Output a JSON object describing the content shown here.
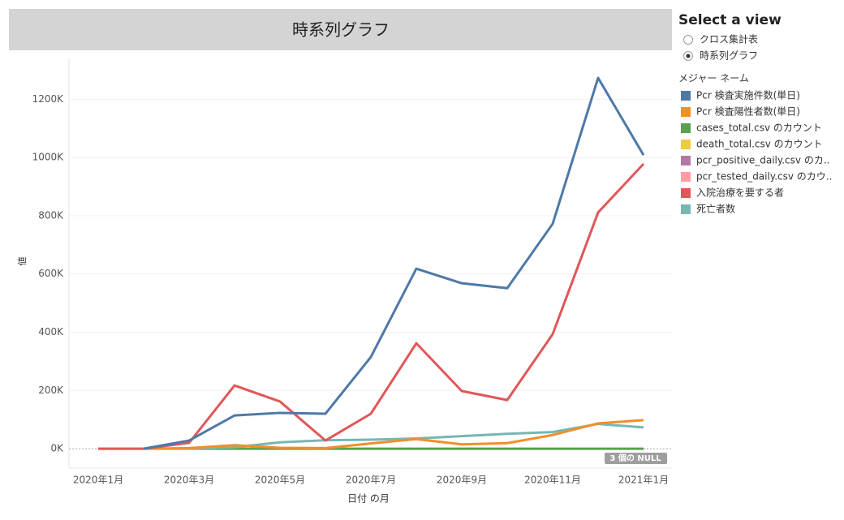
{
  "chart_data": {
    "type": "line",
    "title": "時系列グラフ",
    "x_label": "日付 の月",
    "y_label": "値",
    "categories": [
      "2020年1月",
      null,
      "2020年3月",
      null,
      "2020年5月",
      null,
      "2020年7月",
      null,
      "2020年9月",
      null,
      "2020年11月",
      null,
      "2021年1月"
    ],
    "legend_title": "メジャー ネーム",
    "null_badge": "3 個の NULL",
    "ylim": [
      -61000,
      1340000
    ],
    "yticks": [
      {
        "value": 0,
        "label": "0K"
      },
      {
        "value": 200000,
        "label": "200K"
      },
      {
        "value": 400000,
        "label": "400K"
      },
      {
        "value": 600000,
        "label": "600K"
      },
      {
        "value": 800000,
        "label": "800K"
      },
      {
        "value": 1000000,
        "label": "1000K"
      },
      {
        "value": 1200000,
        "label": "1200K"
      }
    ],
    "series": [
      {
        "name": "Pcr 検査実施件数(単日)",
        "color": "#4e79a7",
        "values": [
          null,
          0,
          28000,
          114000,
          123000,
          120000,
          315000,
          618000,
          568000,
          551000,
          772000,
          1273000,
          1008000
        ]
      },
      {
        "name": "Pcr 検査陽性者数(単日)",
        "color": "#f28e2b",
        "values": [
          0,
          0,
          2000,
          12000,
          3000,
          2000,
          18000,
          33000,
          15000,
          19000,
          47000,
          87000,
          98000
        ]
      },
      {
        "name": "cases_total.csv のカウント",
        "color": "#59a14f",
        "values": [
          null,
          null,
          0,
          0,
          0,
          0,
          0,
          0,
          0,
          0,
          0,
          0,
          0
        ]
      },
      {
        "name": "death_total.csv のカウント",
        "color": "#edc948",
        "values": [
          null,
          null,
          null,
          null,
          null,
          null,
          null,
          null,
          null,
          null,
          null,
          null,
          null
        ]
      },
      {
        "name": "pcr_positive_daily.csv のカ..",
        "color": "#b07aa1",
        "values": [
          null,
          null,
          null,
          null,
          null,
          null,
          null,
          null,
          null,
          null,
          null,
          null,
          null
        ]
      },
      {
        "name": "pcr_tested_daily.csv のカウ..",
        "color": "#ff9da7",
        "values": [
          null,
          null,
          null,
          null,
          null,
          null,
          null,
          null,
          null,
          null,
          null,
          null,
          null
        ]
      },
      {
        "name": "入院治療を要する者",
        "color": "#e15759",
        "values": [
          0,
          0,
          20000,
          217000,
          162000,
          28000,
          120000,
          362000,
          198000,
          167000,
          393000,
          811000,
          978000
        ]
      },
      {
        "name": "死亡者数",
        "color": "#76b7b2",
        "values": [
          null,
          0,
          0,
          5000,
          22000,
          29000,
          31000,
          35000,
          43000,
          51000,
          57000,
          85000,
          73000
        ]
      }
    ]
  },
  "view_selector": {
    "title": "Select a view",
    "options": [
      "クロス集計表",
      "時系列グラフ"
    ],
    "selected": 1
  }
}
